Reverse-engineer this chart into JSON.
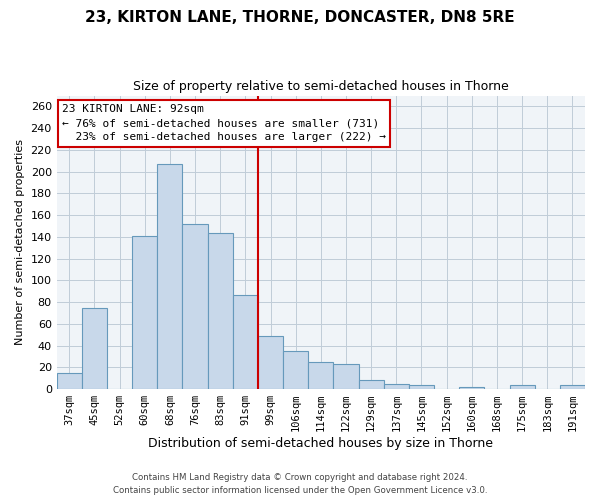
{
  "title": "23, KIRTON LANE, THORNE, DONCASTER, DN8 5RE",
  "subtitle": "Size of property relative to semi-detached houses in Thorne",
  "xlabel": "Distribution of semi-detached houses by size in Thorne",
  "ylabel": "Number of semi-detached properties",
  "categories": [
    "37sqm",
    "45sqm",
    "52sqm",
    "60sqm",
    "68sqm",
    "76sqm",
    "83sqm",
    "91sqm",
    "99sqm",
    "106sqm",
    "114sqm",
    "122sqm",
    "129sqm",
    "137sqm",
    "145sqm",
    "152sqm",
    "160sqm",
    "168sqm",
    "175sqm",
    "183sqm",
    "191sqm"
  ],
  "values": [
    15,
    75,
    0,
    141,
    207,
    152,
    144,
    87,
    49,
    35,
    25,
    23,
    8,
    5,
    4,
    0,
    2,
    0,
    4,
    0,
    4
  ],
  "bar_color": "#c8d8ea",
  "bar_edge_color": "#6699bb",
  "vline_index": 7,
  "vline_color": "#cc0000",
  "annotation_title": "23 KIRTON LANE: 92sqm",
  "annotation_line1": "← 76% of semi-detached houses are smaller (731)",
  "annotation_line2": "  23% of semi-detached houses are larger (222) →",
  "annotation_box_edge": "#cc0000",
  "footer1": "Contains HM Land Registry data © Crown copyright and database right 2024.",
  "footer2": "Contains public sector information licensed under the Open Government Licence v3.0.",
  "ylim": [
    0,
    270
  ],
  "yticks": [
    0,
    20,
    40,
    60,
    80,
    100,
    120,
    140,
    160,
    180,
    200,
    220,
    240,
    260
  ],
  "figsize": [
    6.0,
    5.0
  ],
  "dpi": 100,
  "bg_color": "#f0f4f8"
}
